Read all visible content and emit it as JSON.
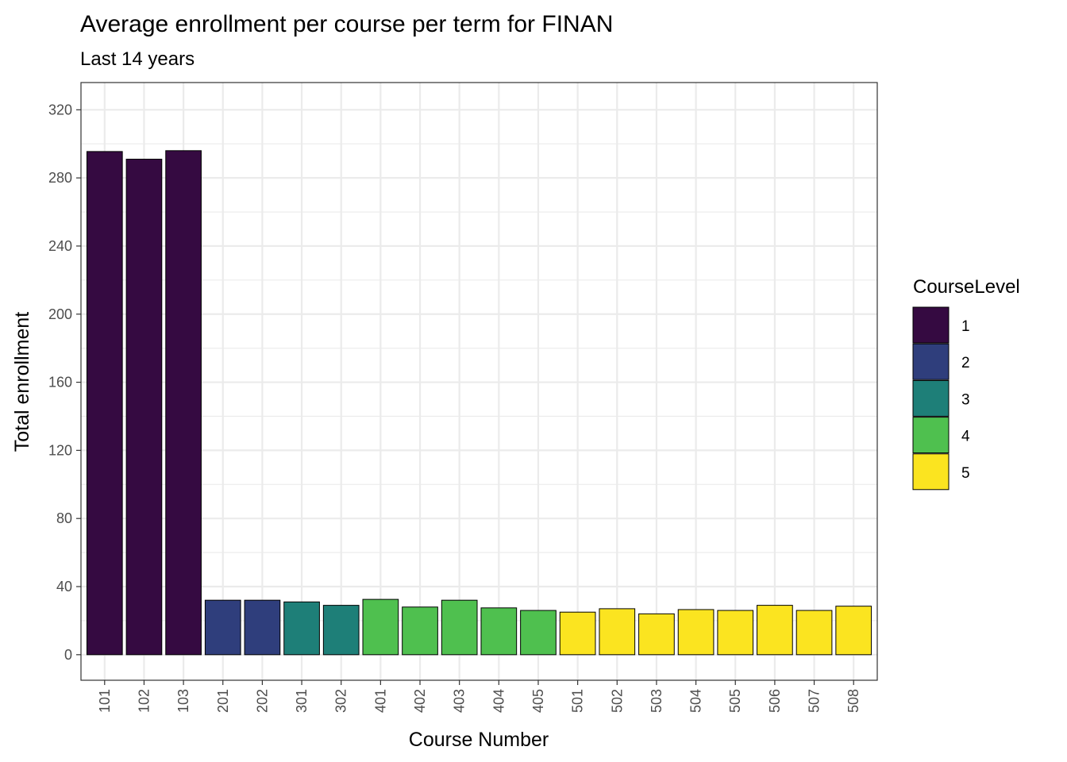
{
  "chart_data": {
    "type": "bar",
    "title": "Average enrollment per course per term for FINAN",
    "subtitle": "Last 14 years",
    "xlabel": "Course Number",
    "ylabel": "Total enrollment",
    "categories": [
      "101",
      "102",
      "103",
      "201",
      "202",
      "301",
      "302",
      "401",
      "402",
      "403",
      "404",
      "405",
      "501",
      "502",
      "503",
      "504",
      "505",
      "506",
      "507",
      "508"
    ],
    "values": [
      295.5,
      291,
      296,
      32,
      32,
      31,
      29,
      32.5,
      28,
      32,
      27.5,
      26,
      25,
      27,
      24,
      26.5,
      26,
      29,
      26,
      28.5
    ],
    "levels": [
      "1",
      "1",
      "1",
      "2",
      "2",
      "3",
      "3",
      "4",
      "4",
      "4",
      "4",
      "4",
      "5",
      "5",
      "5",
      "5",
      "5",
      "5",
      "5",
      "5"
    ],
    "ylim": [
      -15,
      336
    ],
    "yticks": [
      0,
      40,
      80,
      120,
      160,
      200,
      240,
      280,
      320
    ],
    "ytick_labels": [
      "0",
      "40",
      "80",
      "120",
      "160",
      "200",
      "240",
      "280",
      "320"
    ],
    "grid": true,
    "legend": {
      "title": "CourseLevel",
      "position": "right",
      "entries": [
        {
          "label": "1",
          "color": "#350A41"
        },
        {
          "label": "2",
          "color": "#2F3E7C"
        },
        {
          "label": "3",
          "color": "#1E7F78"
        },
        {
          "label": "4",
          "color": "#4FC04F"
        },
        {
          "label": "5",
          "color": "#FBE420"
        }
      ]
    }
  }
}
